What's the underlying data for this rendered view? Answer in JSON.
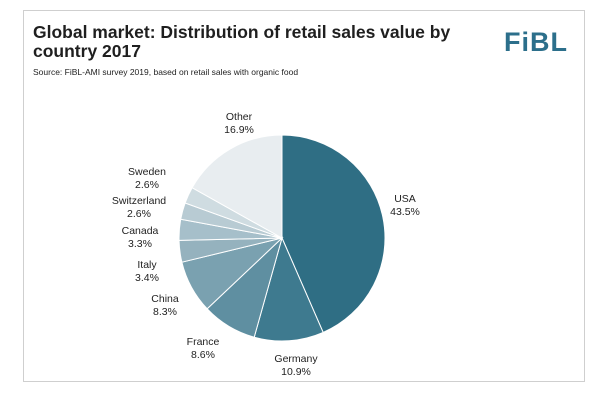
{
  "header": {
    "title": "Global market: Distribution of retail sales value by country 2017",
    "source": "Source: FiBL-AMI survey 2019, based on retail sales with organic food",
    "logo": "FiBL"
  },
  "colors": {
    "USA": "#2f6e84",
    "Germany": "#3e7a8f",
    "France": "#5f8fa1",
    "China": "#7aa1b0",
    "Italy": "#95b2be",
    "Canada": "#a6bfca",
    "Switzerland": "#b8cbd3",
    "Sweden": "#cfdce1",
    "Other": "#e8edf0"
  },
  "chart_data": {
    "type": "pie",
    "title": "Global market: Distribution of retail sales value by country 2017",
    "categories": [
      "USA",
      "Germany",
      "France",
      "China",
      "Italy",
      "Canada",
      "Switzerland",
      "Sweden",
      "Other"
    ],
    "values": [
      43.5,
      10.9,
      8.6,
      8.3,
      3.4,
      3.3,
      2.6,
      2.6,
      16.9
    ],
    "labels": [
      "43.5%",
      "10.9%",
      "8.6%",
      "8.3%",
      "3.4%",
      "3.3%",
      "2.6%",
      "2.6%",
      "16.9%"
    ],
    "unit": "%"
  }
}
